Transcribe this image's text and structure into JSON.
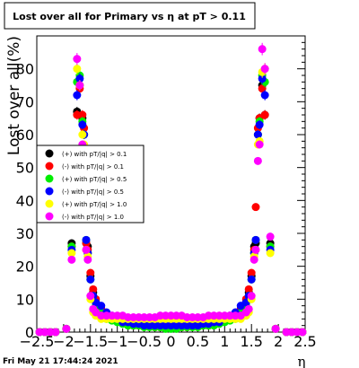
{
  "chart_data": {
    "type": "scatter",
    "title": "Lost over all for Primary vs   η at pT > 0.11",
    "xlabel": "η",
    "ylabel": "Lost over all(%)",
    "xlim": [
      -2.5,
      2.5
    ],
    "ylim": [
      0,
      90
    ],
    "x_ticks": [
      "−2.5",
      "−2",
      "−1.5",
      "−1",
      "−0.5",
      "0",
      "0.5",
      "1",
      "1.5",
      "2",
      "2.5"
    ],
    "y_ticks": [
      "0",
      "10",
      "20",
      "30",
      "40",
      "50",
      "60",
      "70",
      "80"
    ],
    "legend_position": "center-left",
    "footer": "Fri May 21 17:44:24 2021",
    "x": [
      -2.45,
      -2.35,
      -2.25,
      -2.15,
      -1.95,
      -1.85,
      -1.75,
      -1.7,
      -1.65,
      -1.62,
      -1.58,
      -1.55,
      -1.5,
      -1.45,
      -1.4,
      -1.3,
      -1.2,
      -1.1,
      -1.0,
      -0.9,
      -0.8,
      -0.7,
      -0.6,
      -0.5,
      -0.4,
      -0.3,
      -0.2,
      -0.1,
      0.0,
      0.1,
      0.2,
      0.3,
      0.4,
      0.5,
      0.6,
      0.7,
      0.8,
      0.9,
      1.0,
      1.1,
      1.2,
      1.3,
      1.4,
      1.45,
      1.5,
      1.55,
      1.58,
      1.62,
      1.65,
      1.7,
      1.75,
      1.85,
      1.95,
      2.15,
      2.25,
      2.35,
      2.45
    ],
    "series": [
      {
        "name": "(+) with pT/|q| > 0.1",
        "color": "#000000",
        "values": [
          0,
          0,
          0,
          0,
          1,
          27,
          67,
          75,
          65,
          60,
          27,
          26,
          17,
          12,
          9,
          7,
          5,
          4,
          4,
          3,
          2.5,
          2,
          2,
          2,
          2,
          1.5,
          1.5,
          1.5,
          1.5,
          1.5,
          1.5,
          1.5,
          2,
          2,
          2,
          2,
          2.5,
          3,
          4,
          4,
          5,
          7,
          9,
          12,
          17,
          26,
          27,
          60,
          65,
          75,
          66,
          27,
          1,
          0,
          0,
          0,
          0
        ]
      },
      {
        "name": "(-) with pT/|q| > 0.1",
        "color": "#ff0000",
        "values": [
          0,
          0,
          0,
          0,
          1,
          26,
          66,
          74,
          66,
          62,
          27,
          25,
          18,
          13,
          10,
          7,
          5,
          4,
          3.5,
          3,
          3,
          2,
          2,
          2,
          2,
          1.5,
          1.5,
          1.5,
          1.5,
          1.5,
          1.5,
          1.5,
          2,
          2,
          2,
          2,
          3,
          3,
          3.5,
          4,
          5,
          7,
          10,
          13,
          18,
          25,
          38,
          62,
          65,
          74,
          66,
          26,
          1,
          0,
          0,
          0,
          0
        ]
      },
      {
        "name": "(+) with pT/|q| > 0.5",
        "color": "#00ee00",
        "values": [
          0,
          0,
          0,
          0,
          1,
          26,
          76,
          78,
          64,
          60,
          28,
          24,
          16,
          11,
          8,
          6,
          4,
          3.5,
          3,
          2.5,
          2,
          2,
          2,
          1.5,
          1.5,
          1.5,
          1.5,
          1,
          1,
          1,
          1.5,
          1.5,
          1.5,
          1.5,
          2,
          2,
          2,
          2.5,
          3,
          3.5,
          4,
          6,
          8,
          11,
          16,
          24,
          28,
          60,
          64,
          78,
          76,
          26,
          1,
          0,
          0,
          0,
          0
        ]
      },
      {
        "name": "(-) with pT/|q| > 0.5",
        "color": "#0000ff",
        "values": [
          0,
          0,
          0,
          0,
          1,
          25,
          72,
          77,
          63,
          60,
          28,
          24,
          16,
          11,
          9,
          8,
          6,
          5,
          4,
          3,
          3,
          2.5,
          2.5,
          2,
          2,
          2,
          2,
          2,
          2,
          2,
          2,
          2,
          2,
          2,
          2.5,
          2.5,
          3,
          3,
          4,
          5,
          6,
          8,
          9,
          11,
          16,
          24,
          28,
          60,
          63,
          77,
          72,
          25,
          1,
          0,
          0,
          0,
          0
        ]
      },
      {
        "name": "(+) with pT/|q| > 1.0",
        "color": "#ffff00",
        "values": [
          0,
          0,
          0,
          0,
          1,
          24,
          80,
          75,
          60,
          57,
          25,
          23,
          10,
          6,
          5,
          4,
          4,
          4,
          4,
          4,
          4,
          4,
          4,
          4,
          4,
          4,
          4,
          4,
          4,
          4,
          4,
          4,
          4,
          4,
          4,
          4,
          4,
          4,
          4,
          4,
          4,
          4,
          5,
          6,
          10,
          23,
          25,
          57,
          58,
          79,
          80,
          24,
          1,
          0,
          0,
          0,
          0
        ]
      },
      {
        "name": "(-) with pT/|q| > 1.0",
        "color": "#ff00ff",
        "values": [
          0,
          0,
          0,
          0,
          1,
          22,
          83,
          75,
          57,
          52,
          25,
          22,
          11,
          7,
          6,
          5,
          5,
          5,
          5,
          5,
          4.5,
          4.5,
          4.5,
          4.5,
          4.5,
          4.5,
          5,
          5,
          5,
          5,
          5,
          4.5,
          4.5,
          4.5,
          4.5,
          5,
          5,
          5,
          5,
          5,
          5,
          5,
          6,
          7,
          11,
          22,
          25,
          52,
          57,
          86,
          80,
          29,
          1,
          0,
          0,
          0,
          0
        ]
      }
    ]
  }
}
